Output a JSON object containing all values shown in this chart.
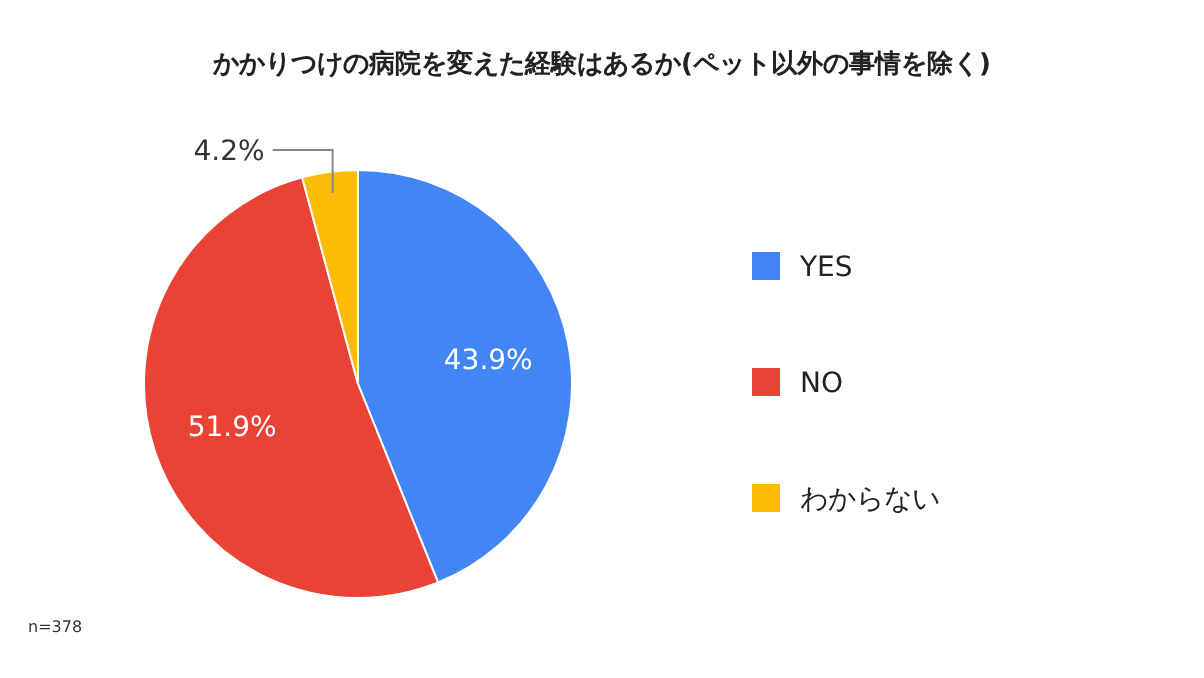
{
  "chart_data": {
    "type": "pie",
    "title": "かかりつけの病院を変えた経験はあるか(ペット以外の事情を除く)",
    "categories": [
      "YES",
      "NO",
      "わからない"
    ],
    "values": [
      43.9,
      51.9,
      4.2
    ],
    "colors": [
      "#4285f4",
      "#ea4335",
      "#fbbc04"
    ],
    "value_labels": [
      "43.9%",
      "51.9%",
      "4.2%"
    ],
    "legend": "right",
    "annotations": [
      "n=378"
    ]
  }
}
